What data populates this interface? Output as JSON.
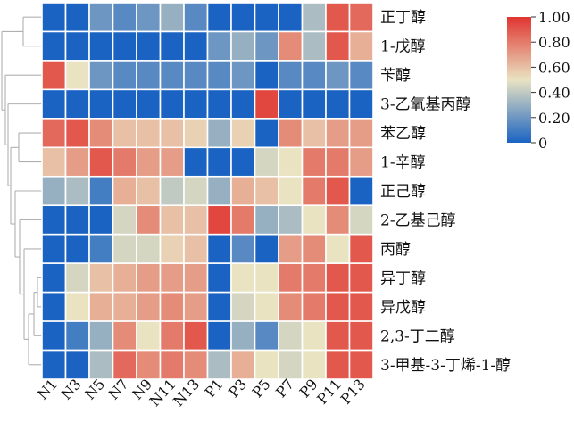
{
  "chart_data": {
    "type": "heatmap",
    "columns": [
      "N1",
      "N3",
      "N5",
      "N7",
      "N9",
      "N11",
      "N13",
      "P1",
      "P3",
      "P5",
      "P7",
      "P9",
      "P11",
      "P13"
    ],
    "rows": [
      "正丁醇",
      "1-戊醇",
      "苄醇",
      "3-乙氧基丙醇",
      "苯乙醇",
      "1-辛醇",
      "正己醇",
      "2-乙基己醇",
      "丙醇",
      "异丁醇",
      "异戊醇",
      "2,3-丁二醇",
      "3-甲基-3-丁烯-1-醇"
    ],
    "values": [
      [
        0.0,
        0.0,
        0.2,
        0.15,
        0.2,
        0.3,
        0.15,
        0.0,
        0.0,
        0.0,
        0.0,
        0.35,
        0.9,
        0.85
      ],
      [
        0.0,
        0.0,
        0.0,
        0.0,
        0.0,
        0.0,
        0.0,
        0.2,
        0.3,
        0.2,
        0.75,
        0.35,
        0.9,
        0.65
      ],
      [
        0.9,
        0.5,
        0.2,
        0.15,
        0.15,
        0.15,
        0.15,
        0.15,
        0.2,
        0.0,
        0.15,
        0.15,
        0.2,
        0.15
      ],
      [
        0.0,
        0.0,
        0.0,
        0.0,
        0.0,
        0.0,
        0.0,
        0.0,
        0.0,
        0.95,
        0.0,
        0.0,
        0.0,
        0.0
      ],
      [
        0.85,
        0.9,
        0.75,
        0.6,
        0.6,
        0.6,
        0.55,
        0.3,
        0.55,
        0.0,
        0.75,
        0.6,
        0.7,
        0.7
      ],
      [
        0.6,
        0.7,
        0.9,
        0.8,
        0.7,
        0.7,
        0.0,
        0.0,
        0.0,
        0.45,
        0.5,
        0.8,
        0.8,
        0.7
      ],
      [
        0.3,
        0.35,
        0.1,
        0.65,
        0.6,
        0.4,
        0.45,
        0.3,
        0.65,
        0.6,
        0.5,
        0.8,
        0.9,
        0.0
      ],
      [
        0.0,
        0.0,
        0.0,
        0.45,
        0.75,
        0.6,
        0.6,
        0.95,
        0.8,
        0.3,
        0.35,
        0.5,
        0.75,
        0.45
      ],
      [
        0.0,
        0.0,
        0.1,
        0.45,
        0.45,
        0.55,
        0.6,
        0.0,
        0.15,
        0.0,
        0.7,
        0.75,
        0.5,
        0.9
      ],
      [
        0.0,
        0.45,
        0.6,
        0.65,
        0.7,
        0.7,
        0.7,
        0.0,
        0.5,
        0.5,
        0.8,
        0.8,
        0.9,
        0.9
      ],
      [
        0.0,
        0.5,
        0.65,
        0.65,
        0.7,
        0.75,
        0.7,
        0.0,
        0.45,
        0.5,
        0.75,
        0.8,
        0.9,
        0.9
      ],
      [
        0.0,
        0.1,
        0.3,
        0.75,
        0.5,
        0.8,
        0.9,
        0.0,
        0.3,
        0.15,
        0.45,
        0.5,
        0.9,
        0.9
      ],
      [
        0.0,
        0.0,
        0.35,
        0.85,
        0.75,
        0.8,
        0.75,
        0.35,
        0.65,
        0.5,
        0.45,
        0.5,
        0.9,
        0.9
      ]
    ],
    "colorbar": {
      "min": 0,
      "max": 1.0,
      "ticks": [
        "0",
        "0.20",
        "0.40",
        "0.60",
        "0.80",
        "1.00"
      ]
    },
    "colormap": {
      "low": "#1a63c2",
      "mid": "#e9e3c2",
      "high": "#e03530"
    },
    "row_dendrogram": true,
    "title": "",
    "xlabel": "",
    "ylabel": ""
  }
}
